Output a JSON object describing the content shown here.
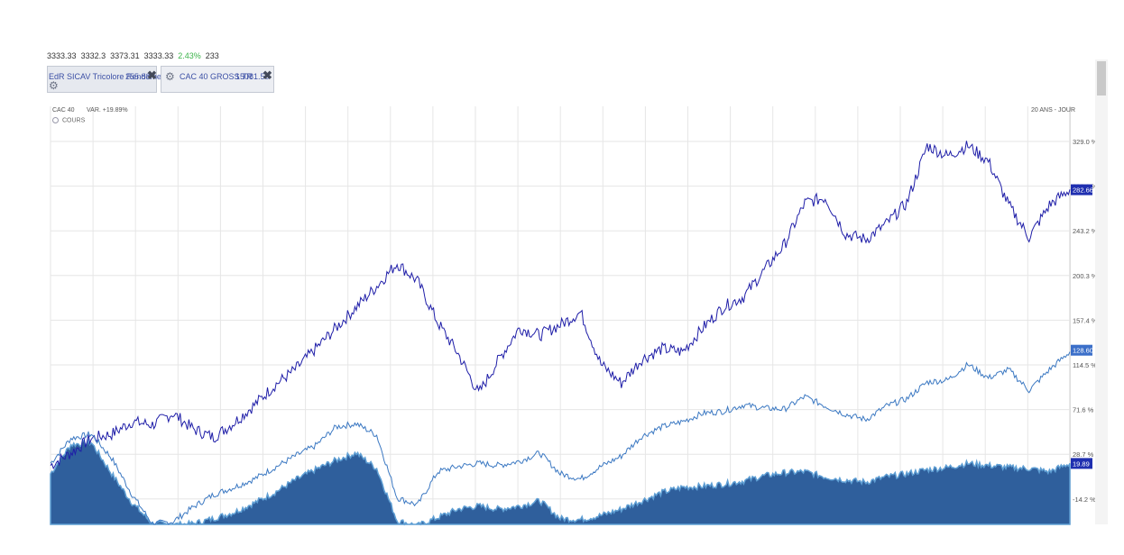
{
  "top_strip": {
    "values": [
      "3333.33",
      "3332.3",
      "3373.31",
      "3333.33",
      "2.43%",
      "233"
    ]
  },
  "tabs": [
    {
      "name": "EdR SICAV Tricolore Rendement C",
      "value": "255.83",
      "settings_icon": "gear-icon",
      "close_icon": "close-icon"
    },
    {
      "name": "CAC 40 GROSS TR",
      "value": "15081.50",
      "settings_icon": "gear-icon",
      "close_icon": "close-icon"
    }
  ],
  "header": {
    "index": "CAC 40",
    "var_label": "VAR.",
    "var_value": "+19.89%",
    "period": "20 ANS - JOUR"
  },
  "legend": {
    "label": "COURS"
  },
  "colors": {
    "line_dark": "#1f1ea8",
    "line_light": "#3b78c2",
    "area_fill": "#2f5f9c",
    "area_top": "#5f9fd4",
    "badge_dark": "#1f2fb0",
    "badge_light": "#3b6fc9"
  },
  "chart_data": {
    "type": "line",
    "title": "",
    "xlabel": "",
    "ylabel": "",
    "ylim": [
      -40,
      345
    ],
    "yticks": [
      329.0,
      286.1,
      243.2,
      200.3,
      157.4,
      114.5,
      71.6,
      28.7,
      -14.2
    ],
    "ytick_labels": [
      "329.0 %",
      "286.1 %",
      "243.2 %",
      "200.3 %",
      "157.4 %",
      "114.5 %",
      "71.6 %",
      "28.7 %",
      "-14.2 %"
    ],
    "x_index_range": [
      0,
      100
    ],
    "series": [
      {
        "name": "EdR SICAV Tricolore Rendement C",
        "style": "line-dark",
        "last_value": 282.66,
        "last_label": "282.66",
        "x": [
          0,
          2,
          4,
          6,
          8,
          10,
          12,
          14,
          16,
          18,
          20,
          22,
          24,
          26,
          28,
          30,
          32,
          34,
          36,
          38,
          40,
          42,
          44,
          46,
          48,
          50,
          52,
          54,
          56,
          58,
          60,
          62,
          64,
          66,
          68,
          70,
          72,
          74,
          76,
          78,
          80,
          82,
          84,
          86,
          88,
          90,
          92,
          94,
          96,
          98,
          100
        ],
        "y": [
          18,
          30,
          44,
          48,
          60,
          57,
          68,
          53,
          45,
          59,
          76,
          95,
          110,
          130,
          150,
          170,
          190,
          212,
          195,
          155,
          125,
          87,
          120,
          150,
          143,
          153,
          165,
          115,
          97,
          120,
          130,
          127,
          150,
          170,
          180,
          205,
          230,
          270,
          275,
          240,
          235,
          250,
          270,
          325,
          315,
          325,
          310,
          268,
          237,
          268,
          283
        ]
      },
      {
        "name": "CAC 40 GROSS TR",
        "style": "line-light",
        "last_value": 128.6,
        "last_label": "128.60",
        "x": [
          0,
          2,
          4,
          6,
          8,
          10,
          12,
          14,
          16,
          18,
          20,
          22,
          24,
          26,
          28,
          30,
          32,
          34,
          36,
          38,
          40,
          42,
          44,
          46,
          48,
          50,
          52,
          54,
          56,
          58,
          60,
          62,
          64,
          66,
          68,
          70,
          72,
          74,
          76,
          78,
          80,
          82,
          84,
          86,
          88,
          90,
          92,
          94,
          96,
          98,
          100
        ],
        "y": [
          20,
          44,
          48,
          25,
          -10,
          -38,
          -36,
          -22,
          -10,
          -3,
          5,
          16,
          27,
          37,
          55,
          58,
          47,
          -13,
          -20,
          12,
          17,
          20,
          18,
          22,
          30,
          10,
          5,
          17,
          27,
          46,
          55,
          60,
          68,
          70,
          76,
          73,
          72,
          84,
          75,
          67,
          62,
          75,
          82,
          98,
          100,
          115,
          102,
          110,
          90,
          110,
          127
        ]
      },
      {
        "name": "CAC 40",
        "style": "area",
        "last_value": 19.89,
        "last_label": "19.89",
        "x": [
          0,
          2,
          4,
          6,
          8,
          10,
          12,
          14,
          16,
          18,
          20,
          22,
          24,
          26,
          28,
          30,
          32,
          34,
          36,
          38,
          40,
          42,
          44,
          46,
          48,
          50,
          52,
          54,
          56,
          58,
          60,
          62,
          64,
          66,
          68,
          70,
          72,
          74,
          76,
          78,
          80,
          82,
          84,
          86,
          88,
          90,
          92,
          94,
          96,
          98,
          100
        ],
        "y": [
          10,
          38,
          40,
          10,
          -18,
          -38,
          -39,
          -38,
          -33,
          -27,
          -18,
          -8,
          4,
          14,
          23,
          30,
          15,
          -35,
          -40,
          -32,
          -24,
          -21,
          -24,
          -21,
          -16,
          -33,
          -34,
          -30,
          -24,
          -16,
          -8,
          -3,
          -2,
          0,
          3,
          8,
          11,
          12,
          7,
          4,
          2,
          7,
          10,
          14,
          16,
          20,
          18,
          16,
          15,
          12,
          20
        ]
      }
    ]
  }
}
